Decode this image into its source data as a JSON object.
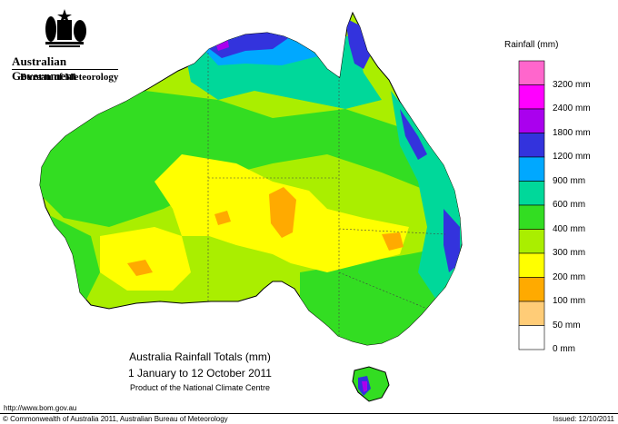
{
  "header": {
    "government": "Australian Government",
    "bureau": "Bureau of Meteorology"
  },
  "legend": {
    "title": "Rainfall (mm)",
    "bins": [
      {
        "label": "",
        "color": "#ff66cc"
      },
      {
        "label": "3200 mm",
        "color": "#ff00ff"
      },
      {
        "label": "2400 mm",
        "color": "#aa00ee"
      },
      {
        "label": "1800 mm",
        "color": "#3333dd"
      },
      {
        "label": "1200 mm",
        "color": "#00a8ff"
      },
      {
        "label": "900 mm",
        "color": "#00d89a"
      },
      {
        "label": "600 mm",
        "color": "#33dd22"
      },
      {
        "label": "400 mm",
        "color": "#aaee00"
      },
      {
        "label": "300 mm",
        "color": "#ffff00"
      },
      {
        "label": "200 mm",
        "color": "#ffaa00"
      },
      {
        "label": "100 mm",
        "color": "#ffcc77"
      },
      {
        "label": "50 mm",
        "color": "#ffffff"
      },
      {
        "label": "0 mm",
        "color": ""
      }
    ]
  },
  "map": {
    "title_line1": "Australia Rainfall Totals (mm)",
    "title_line2": "1 January to 12 October 2011",
    "subtitle": "Product of the National Climate Centre"
  },
  "footer": {
    "url": "http://www.bom.gov.au",
    "copyright": "© Commonwealth of Australia 2011, Australian Bureau of Meteorology",
    "issued": "Issued: 12/10/2011"
  }
}
